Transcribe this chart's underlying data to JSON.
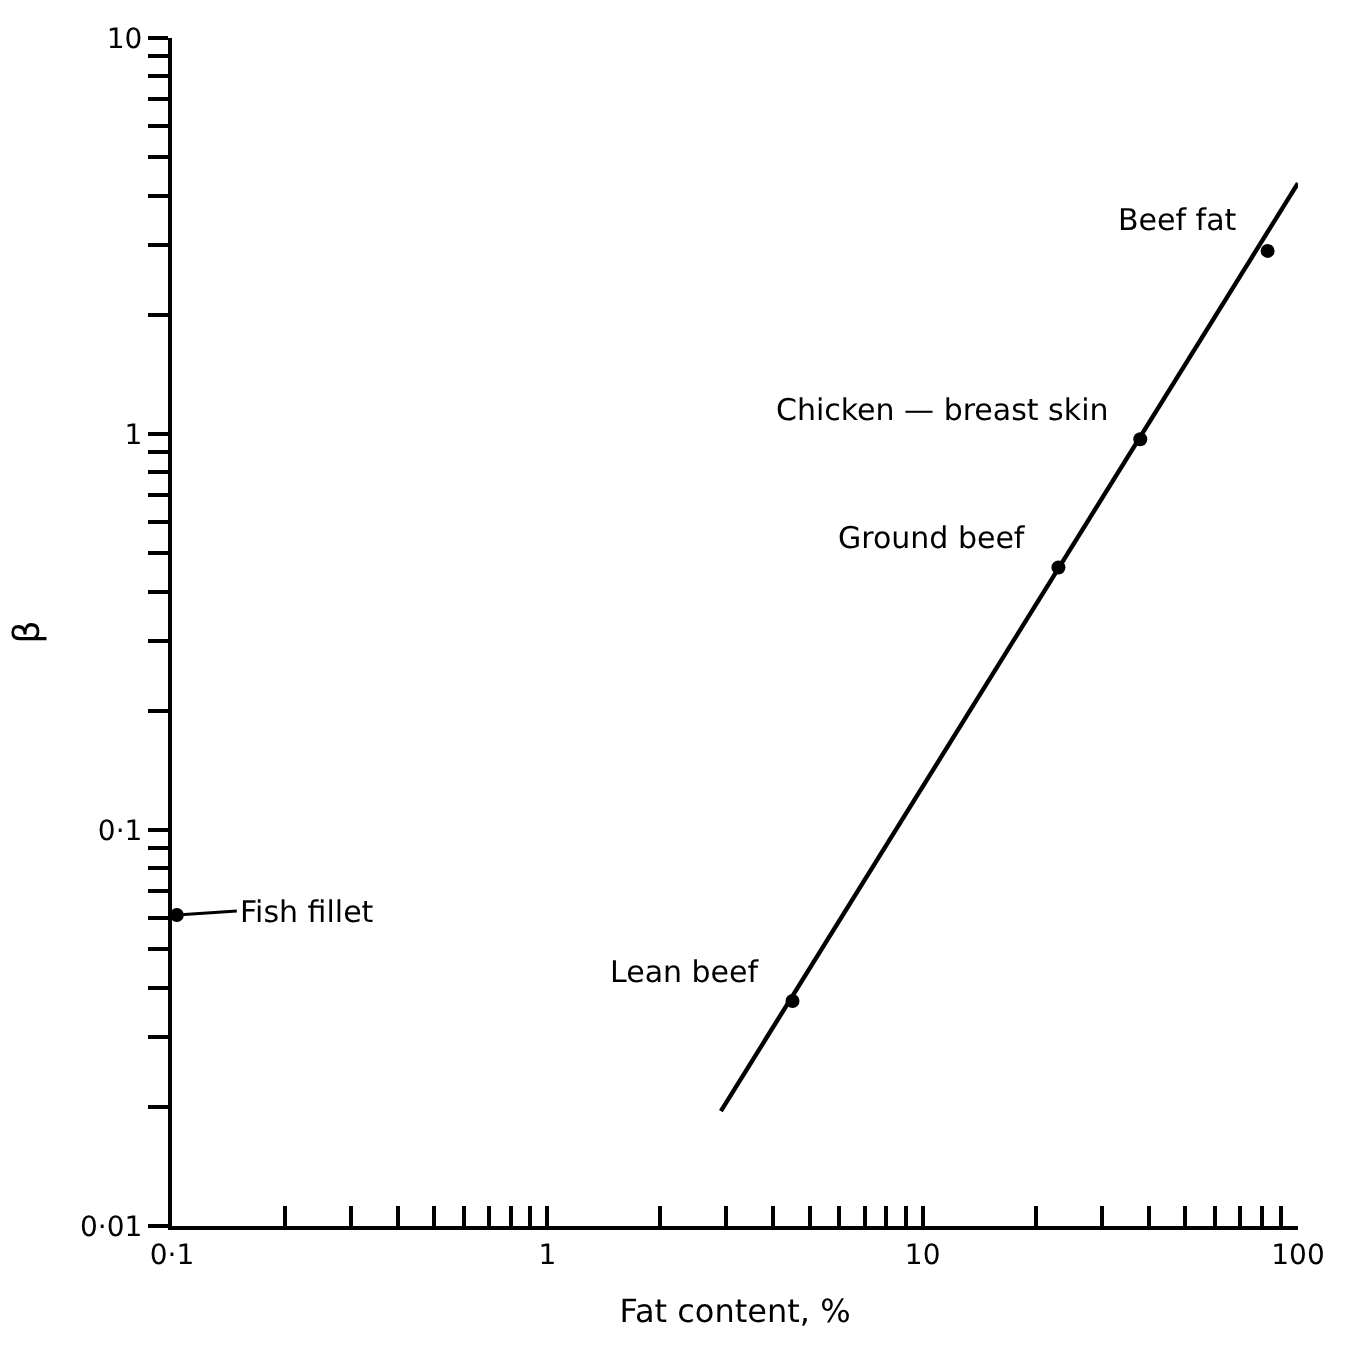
{
  "chart_data": {
    "type": "scatter",
    "xlabel": "Fat content, %",
    "ylabel": "β",
    "log": "xy",
    "marker": "circle",
    "xlim": [
      0.1,
      100
    ],
    "ylim": [
      0.01,
      10
    ],
    "xticks": [
      {
        "value": 0.1,
        "label": "0·1"
      },
      {
        "value": 0.2,
        "label": null
      },
      {
        "value": 0.3,
        "label": null
      },
      {
        "value": 0.4,
        "label": null
      },
      {
        "value": 0.5,
        "label": null
      },
      {
        "value": 0.6,
        "label": null
      },
      {
        "value": 0.7,
        "label": null
      },
      {
        "value": 0.8,
        "label": null
      },
      {
        "value": 0.9,
        "label": null
      },
      1,
      {
        "value": 2,
        "label": null
      },
      {
        "value": 3,
        "label": null
      },
      {
        "value": 4,
        "label": null
      },
      {
        "value": 5,
        "label": null
      },
      {
        "value": 6,
        "label": null
      },
      {
        "value": 7,
        "label": null
      },
      {
        "value": 8,
        "label": null
      },
      {
        "value": 9,
        "label": null
      },
      10,
      {
        "value": 20,
        "label": null
      },
      {
        "value": 30,
        "label": null
      },
      {
        "value": 40,
        "label": null
      },
      {
        "value": 50,
        "label": null
      },
      {
        "value": 60,
        "label": null
      },
      {
        "value": 70,
        "label": null
      },
      {
        "value": 80,
        "label": null
      },
      {
        "value": 90,
        "label": null
      },
      100
    ],
    "yticks": [
      {
        "value": 0.01,
        "label": "0·01"
      },
      {
        "value": 0.02,
        "label": null
      },
      {
        "value": 0.03,
        "label": null
      },
      {
        "value": 0.04,
        "label": null
      },
      {
        "value": 0.05,
        "label": null
      },
      {
        "value": 0.06,
        "label": null
      },
      {
        "value": 0.07,
        "label": null
      },
      {
        "value": 0.08,
        "label": null
      },
      {
        "value": 0.09,
        "label": null
      },
      {
        "value": 0.1,
        "label": "0·1"
      },
      {
        "value": 0.2,
        "label": null
      },
      {
        "value": 0.3,
        "label": null
      },
      {
        "value": 0.4,
        "label": null
      },
      {
        "value": 0.5,
        "label": null
      },
      {
        "value": 0.6,
        "label": null
      },
      {
        "value": 0.7,
        "label": null
      },
      {
        "value": 0.8,
        "label": null
      },
      {
        "value": 0.9,
        "label": null
      },
      1,
      {
        "value": 2,
        "label": null
      },
      {
        "value": 3,
        "label": null
      },
      {
        "value": 4,
        "label": null
      },
      {
        "value": 5,
        "label": null
      },
      {
        "value": 6,
        "label": null
      },
      {
        "value": 7,
        "label": null
      },
      {
        "value": 8,
        "label": null
      },
      {
        "value": 9,
        "label": null
      },
      10
    ],
    "series": [
      {
        "color": "#000000",
        "x": [
          0.103,
          4.5,
          23,
          38,
          83
        ],
        "values": [
          0.061,
          0.037,
          0.46,
          0.97,
          2.9
        ]
      },
      {
        "type": "line",
        "color": "#000000",
        "line_style": "solid",
        "marker": "none",
        "x": [
          2.9,
          100
        ],
        "values": [
          0.0195,
          4.3
        ]
      }
    ],
    "annotations": [
      {
        "text": "Fish fillet",
        "x": 0.103,
        "y": 0.061
      },
      {
        "text": "Lean beef",
        "x": 4.5,
        "y": 0.037
      },
      {
        "text": "Ground beef",
        "x": 23,
        "y": 0.46
      },
      {
        "text": "Chicken — breast skin",
        "x": 38,
        "y": 0.97
      },
      {
        "text": "Beef fat",
        "x": 83,
        "y": 2.9
      }
    ]
  }
}
